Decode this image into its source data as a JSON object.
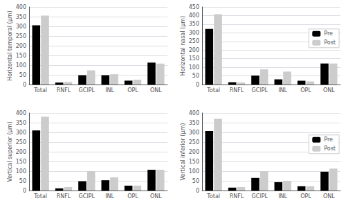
{
  "chart_data": [
    {
      "type": "bar",
      "ylabel": "Horizontal temporal (μm)",
      "categories": [
        "Total",
        "RNFL",
        "GCIPL",
        "INL",
        "OPL",
        "ONL"
      ],
      "series": [
        {
          "name": "Pre",
          "color": "#000000",
          "values": [
            305,
            10,
            48,
            48,
            20,
            113
          ]
        },
        {
          "name": "Post",
          "color": "#cccccc",
          "values": [
            355,
            13,
            73,
            53,
            25,
            108
          ]
        }
      ],
      "ylim": [
        0,
        400
      ],
      "yticks": [
        0,
        50,
        100,
        150,
        200,
        250,
        300,
        350,
        400
      ],
      "grid": true,
      "legend": false
    },
    {
      "type": "bar",
      "ylabel": "Horizontal nasal (μm)",
      "categories": [
        "Total",
        "RNFL",
        "GCIPL",
        "INL",
        "OPL",
        "ONL"
      ],
      "series": [
        {
          "name": "Pre",
          "color": "#000000",
          "values": [
            322,
            13,
            52,
            30,
            22,
            122
          ]
        },
        {
          "name": "Post",
          "color": "#cccccc",
          "values": [
            408,
            12,
            88,
            75,
            18,
            122
          ]
        }
      ],
      "ylim": [
        0,
        450
      ],
      "yticks": [
        0,
        50,
        100,
        150,
        200,
        250,
        300,
        350,
        400,
        450
      ],
      "grid": true,
      "legend": "right"
    },
    {
      "type": "bar",
      "ylabel": "Vertical superior (μm)",
      "categories": [
        "Total",
        "RNFL",
        "GCIPL",
        "INL",
        "OPL",
        "ONL"
      ],
      "series": [
        {
          "name": "Pre",
          "color": "#000000",
          "values": [
            310,
            11,
            48,
            53,
            25,
            107
          ]
        },
        {
          "name": "Post",
          "color": "#cccccc",
          "values": [
            380,
            18,
            100,
            68,
            25,
            107
          ]
        }
      ],
      "ylim": [
        0,
        400
      ],
      "yticks": [
        0,
        50,
        100,
        150,
        200,
        250,
        300,
        350,
        400
      ],
      "grid": true,
      "legend": false
    },
    {
      "type": "bar",
      "ylabel": "Vertical inferior (μm)",
      "categories": [
        "Total",
        "RNFL",
        "GCIPL",
        "INL",
        "OPL",
        "ONL"
      ],
      "series": [
        {
          "name": "Pre",
          "color": "#000000",
          "values": [
            307,
            15,
            65,
            43,
            22,
            97
          ]
        },
        {
          "name": "Post",
          "color": "#cccccc",
          "values": [
            370,
            18,
            100,
            50,
            22,
            113
          ]
        }
      ],
      "ylim": [
        0,
        400
      ],
      "yticks": [
        0,
        50,
        100,
        150,
        200,
        250,
        300,
        350,
        400
      ],
      "grid": true,
      "legend": "right"
    }
  ]
}
